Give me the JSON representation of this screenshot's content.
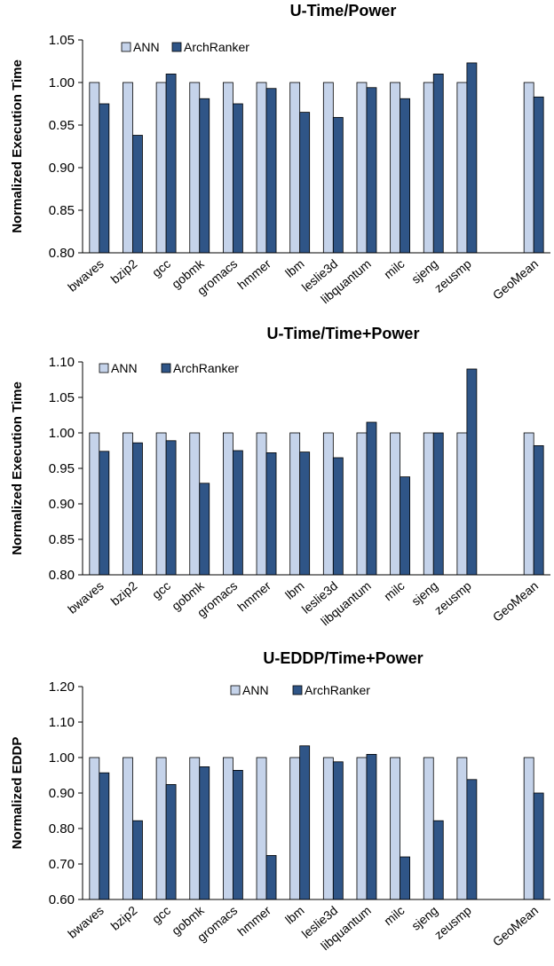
{
  "colors": {
    "ann": "#c5d3ea",
    "archranker": "#2f5587",
    "axis": "#000000",
    "bar_stroke": "#000000"
  },
  "chart_data": [
    {
      "type": "bar",
      "title": "U-Time/Power",
      "ylabel": "Normalized Execution Time",
      "ylim": [
        0.8,
        1.05
      ],
      "yticks": [
        "0.80",
        "0.85",
        "0.90",
        "0.95",
        "1.00",
        "1.05"
      ],
      "tick_values": [
        0.8,
        0.85,
        0.9,
        0.95,
        1.0,
        1.05
      ],
      "legend_position": "top-left",
      "grid": false,
      "categories": [
        "bwaves",
        "bzip2",
        "gcc",
        "gobmk",
        "gromacs",
        "hmmer",
        "lbm",
        "leslie3d",
        "libquantum",
        "milc",
        "sjeng",
        "zeusmp",
        "",
        "GeoMean"
      ],
      "series": [
        {
          "name": "ANN",
          "values": [
            1.0,
            1.0,
            1.0,
            1.0,
            1.0,
            1.0,
            1.0,
            1.0,
            1.0,
            1.0,
            1.0,
            1.0,
            null,
            1.0
          ]
        },
        {
          "name": "ArchRanker",
          "values": [
            0.975,
            0.938,
            1.01,
            0.981,
            0.975,
            0.993,
            0.965,
            0.959,
            0.994,
            0.981,
            1.01,
            1.023,
            null,
            0.983
          ]
        }
      ]
    },
    {
      "type": "bar",
      "title": "U-Time/Time+Power",
      "ylabel": "Normalized Execution Time",
      "ylim": [
        0.8,
        1.1
      ],
      "yticks": [
        "0.80",
        "0.85",
        "0.90",
        "0.95",
        "1.00",
        "1.05",
        "1.10"
      ],
      "tick_values": [
        0.8,
        0.85,
        0.9,
        0.95,
        1.0,
        1.05,
        1.1
      ],
      "legend_position": "top-left",
      "grid": false,
      "categories": [
        "bwaves",
        "bzip2",
        "gcc",
        "gobmk",
        "gromacs",
        "hmmer",
        "lbm",
        "leslie3d",
        "libquantum",
        "milc",
        "sjeng",
        "zeusmp",
        "",
        "GeoMean"
      ],
      "series": [
        {
          "name": "ANN",
          "values": [
            1.0,
            1.0,
            1.0,
            1.0,
            1.0,
            1.0,
            1.0,
            1.0,
            1.0,
            1.0,
            1.0,
            1.0,
            null,
            1.0
          ]
        },
        {
          "name": "ArchRanker",
          "values": [
            0.974,
            0.986,
            0.989,
            0.929,
            0.975,
            0.972,
            0.973,
            0.965,
            1.015,
            0.938,
            1.0,
            1.09,
            null,
            0.982
          ]
        }
      ]
    },
    {
      "type": "bar",
      "title": "U-EDDP/Time+Power",
      "ylabel": "Normalized EDDP",
      "ylim": [
        0.6,
        1.2
      ],
      "yticks": [
        "0.60",
        "0.70",
        "0.80",
        "0.90",
        "1.00",
        "1.10",
        "1.20"
      ],
      "tick_values": [
        0.6,
        0.7,
        0.8,
        0.9,
        1.0,
        1.1,
        1.2
      ],
      "legend_position": "top-center",
      "grid": false,
      "categories": [
        "bwaves",
        "bzip2",
        "gcc",
        "gobmk",
        "gromacs",
        "hmmer",
        "lbm",
        "leslie3d",
        "libquantum",
        "milc",
        "sjeng",
        "zeusmp",
        "",
        "GeoMean"
      ],
      "series": [
        {
          "name": "ANN",
          "values": [
            1.0,
            1.0,
            1.0,
            1.0,
            1.0,
            1.0,
            1.0,
            1.0,
            1.0,
            1.0,
            1.0,
            1.0,
            null,
            1.0
          ]
        },
        {
          "name": "ArchRanker",
          "values": [
            0.957,
            0.822,
            0.924,
            0.974,
            0.964,
            0.724,
            1.033,
            0.988,
            1.009,
            0.72,
            0.822,
            0.938,
            null,
            0.9
          ]
        }
      ]
    }
  ]
}
